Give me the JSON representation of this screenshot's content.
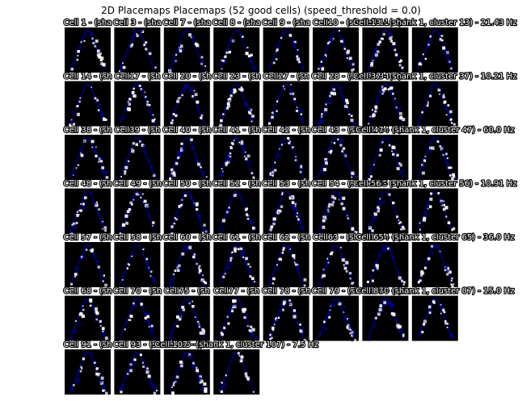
{
  "figure": {
    "title": "2D Placemaps Placemaps (52 good cells) (speed_threshold = 0.0)"
  },
  "chart_data": {
    "type": "heatmap",
    "title": "2D Placemaps Placemaps (52 good cells) (speed_threshold = 0.0)",
    "grid": {
      "rows": 7,
      "cols": 8
    },
    "colormap": [
      "#000000",
      "#0000aa",
      "#ffffff"
    ],
    "cells": [
      {
        "label": "Cell 1 - (sha",
        "id": 1
      },
      {
        "label": "Cell 3 - (sha",
        "id": 3
      },
      {
        "label": "Cell 7 - (sha",
        "id": 7
      },
      {
        "label": "Cell 8 - (sha",
        "id": 8
      },
      {
        "label": "Cell 9 - (sha",
        "id": 9
      },
      {
        "label": "Cell10 - (sh",
        "id": 10
      },
      {
        "label": "Cell 11 - (sh",
        "id": 11
      },
      {
        "label": "Cell 13 - (shank 1, cluster 13) - 21.43 Hz",
        "id": 13
      },
      {
        "label": "Cell 14 - (sh",
        "id": 14
      },
      {
        "label": "Cell17 - (sh",
        "id": 17
      },
      {
        "label": "Cell 20 - (sh",
        "id": 20
      },
      {
        "label": "Cell 23 - (sh",
        "id": 23
      },
      {
        "label": "Cell27 - (sh",
        "id": 27
      },
      {
        "label": "Cell 28 - (sh",
        "id": 28
      },
      {
        "label": "Cell 34 - (sh",
        "id": 34
      },
      {
        "label": "Cell 37 - (shank 1, cluster 37) - 10.21 Hz",
        "id": 37
      },
      {
        "label": "Cell 38 - (sh",
        "id": 38
      },
      {
        "label": "Cell39 - (sh",
        "id": 39
      },
      {
        "label": "Cell 40 - (sh",
        "id": 40
      },
      {
        "label": "Cell 41 - (sh",
        "id": 41
      },
      {
        "label": "Cell 42 - (sh",
        "id": 42
      },
      {
        "label": "Cell 43 - (sh",
        "id": 43
      },
      {
        "label": "Cell 44 - (sh",
        "id": 44
      },
      {
        "label": "Cell 47 - (shank 1, cluster 47) - 60.0 Hz",
        "id": 47
      },
      {
        "label": "Cell 48 - (sh",
        "id": 48
      },
      {
        "label": "Cell 49 - (sh",
        "id": 49
      },
      {
        "label": "Cell 50 - (sh",
        "id": 50
      },
      {
        "label": "Cell 52 - (sh",
        "id": 52
      },
      {
        "label": "Cell 53 - (sh",
        "id": 53
      },
      {
        "label": "Cell 54 - (sh",
        "id": 54
      },
      {
        "label": "Cell55 - (sh",
        "id": 55
      },
      {
        "label": "Cell 56 - (shank 1, cluster 56) - 10.91 Hz",
        "id": 56
      },
      {
        "label": "Cell 57 - (sh",
        "id": 57
      },
      {
        "label": "Cell 58 - (sh",
        "id": 58
      },
      {
        "label": "Cell 60 - (sh",
        "id": 60
      },
      {
        "label": "Cell 61 - (sh",
        "id": 61
      },
      {
        "label": "Cell 62 - (sh",
        "id": 62
      },
      {
        "label": "Cell63 - (sh",
        "id": 63
      },
      {
        "label": "Cell 64 - (sh",
        "id": 64
      },
      {
        "label": "Cell 65 - (shank 1, cluster 65) - 36.0 Hz",
        "id": 65
      },
      {
        "label": "Cell 68 - (sh",
        "id": 68
      },
      {
        "label": "Cell 70 - (sh",
        "id": 70
      },
      {
        "label": "Cell75 - (sh",
        "id": 75
      },
      {
        "label": "Cell77 - (sh",
        "id": 77
      },
      {
        "label": "Cell 78 - (sh",
        "id": 78
      },
      {
        "label": "Cell 79 - (sh",
        "id": 79
      },
      {
        "label": "Cell 80 - (sh",
        "id": 80
      },
      {
        "label": "Cell 87 - (shank 1, cluster 87) - 15.0 Hz",
        "id": 87
      },
      {
        "label": "Cell 91 - (sh",
        "id": 91
      },
      {
        "label": "Cell 93 - (sh",
        "id": 93
      },
      {
        "label": "Cell 95 - (sh",
        "id": 95
      },
      {
        "label": "Cell 107 - (shank 1, cluster 107) - 7.5 Hz",
        "id": 107
      }
    ]
  }
}
